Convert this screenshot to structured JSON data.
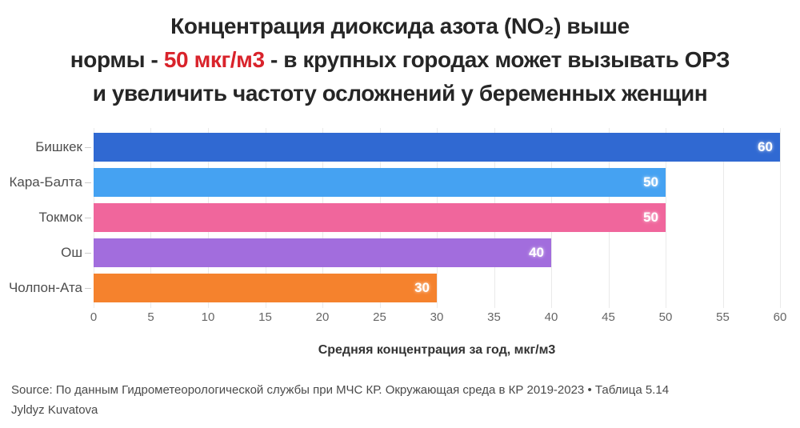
{
  "title": {
    "line1": "Концентрация диоксида азота (NO₂) выше",
    "line2_prefix": "нормы - ",
    "line2_highlight": "50 мкг/м3",
    "line2_suffix": " - в крупных городах может вызывать ОРЗ",
    "line3": "и увеличить частоту осложнений у беременных женщин",
    "highlight_color": "#d9232b",
    "text_color": "#262626"
  },
  "chart_data": {
    "type": "bar",
    "orientation": "horizontal",
    "title": "Концентрация диоксида азота (NO₂) выше нормы - 50 мкг/м3 - в крупных городах может вызывать ОРЗ и увеличить частоту осложнений у беременных женщин",
    "categories": [
      "Бишкек",
      "Кара-Балта",
      "Токмок",
      "Ош",
      "Чолпон-Ата"
    ],
    "values": [
      60,
      50,
      50,
      40,
      30
    ],
    "value_labels": [
      "60",
      "50",
      "50",
      "40",
      "30"
    ],
    "bar_colors": [
      "#3069d2",
      "#45a2f2",
      "#f0669c",
      "#a26ddd",
      "#f5822d"
    ],
    "xlabel": "Средняя концентрация за год, мкг/м3",
    "ylabel": "",
    "x_ticks": [
      0,
      5,
      10,
      15,
      20,
      25,
      30,
      35,
      40,
      45,
      50,
      55,
      60
    ],
    "xlim": [
      0,
      60
    ],
    "grid": true,
    "legend": "none",
    "grid_color": "#eaeaea"
  },
  "footer": {
    "line1": "Source: По данным Гидрометеорологической службы при МЧС КР. Окружающая среда в КР 2019-2023 • Таблица 5.14",
    "line2": "Jyldyz Kuvatova"
  }
}
